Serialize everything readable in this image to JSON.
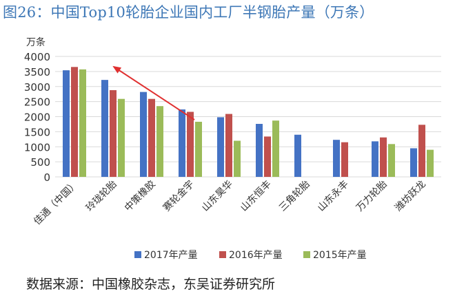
{
  "title": "图26：中国Top10轮胎企业国内工厂半钢胎产量（万条）",
  "source": "数据来源：中国橡胶杂志，东吴证券研究所",
  "colors": {
    "s2017": "#4472c4",
    "s2016": "#c0504d",
    "s2015": "#9bbb59",
    "arrow": "#e03030",
    "title": "#3d77b6"
  },
  "chart_data": {
    "type": "bar",
    "title": "中国Top10轮胎企业国内工厂半钢胎产量（万条）",
    "unit_label": "万条",
    "ylim": [
      0,
      4000
    ],
    "yticks": [
      "0",
      "500",
      "1000",
      "1500",
      "2000",
      "2500",
      "3000",
      "3500",
      "4000"
    ],
    "grid": true,
    "legend_position": "bottom",
    "categories": [
      "佳通（中国）",
      "玲珑轮胎",
      "中策橡胶",
      "赛轮金宇",
      "山东昊华",
      "山东恒丰",
      "三角轮胎",
      "山东永丰",
      "万力轮胎",
      "潍坊跃龙"
    ],
    "series": [
      {
        "name": "2017年产量",
        "values": [
          3540,
          3220,
          2820,
          2240,
          1980,
          1760,
          1400,
          1230,
          1180,
          950
        ]
      },
      {
        "name": "2016年产量",
        "values": [
          3650,
          2880,
          2590,
          2160,
          2090,
          1340,
          null,
          1150,
          1310,
          1730
        ]
      },
      {
        "name": "2015年产量",
        "values": [
          3570,
          2590,
          2350,
          1830,
          1200,
          1870,
          null,
          null,
          1090,
          900
        ]
      }
    ],
    "annotation": "red downward trend arrow from 赛轮金宇 toward 玲珑轮胎/top"
  }
}
